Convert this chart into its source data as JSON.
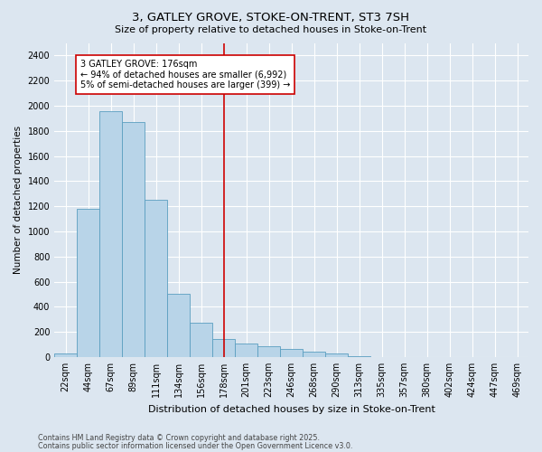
{
  "title1": "3, GATLEY GROVE, STOKE-ON-TRENT, ST3 7SH",
  "title2": "Size of property relative to detached houses in Stoke-on-Trent",
  "xlabel": "Distribution of detached houses by size in Stoke-on-Trent",
  "ylabel": "Number of detached properties",
  "categories": [
    "22sqm",
    "44sqm",
    "67sqm",
    "89sqm",
    "111sqm",
    "134sqm",
    "156sqm",
    "178sqm",
    "201sqm",
    "223sqm",
    "246sqm",
    "268sqm",
    "290sqm",
    "313sqm",
    "335sqm",
    "357sqm",
    "380sqm",
    "402sqm",
    "424sqm",
    "447sqm",
    "469sqm"
  ],
  "values": [
    30,
    1180,
    1960,
    1870,
    1250,
    500,
    270,
    140,
    105,
    85,
    65,
    40,
    25,
    5,
    2,
    1,
    1,
    0,
    0,
    0,
    0
  ],
  "bar_color": "#b8d4e8",
  "bar_edge_color": "#5a9ec0",
  "vline_x": 7,
  "vline_color": "#cc0000",
  "annotation_text": "3 GATLEY GROVE: 176sqm\n← 94% of detached houses are smaller (6,992)\n5% of semi-detached houses are larger (399) →",
  "annotation_box_color": "#ffffff",
  "annotation_box_edge": "#cc0000",
  "bg_color": "#dce6f0",
  "grid_color": "#ffffff",
  "ylim": [
    0,
    2500
  ],
  "yticks": [
    0,
    200,
    400,
    600,
    800,
    1000,
    1200,
    1400,
    1600,
    1800,
    2000,
    2200,
    2400
  ],
  "footer1": "Contains HM Land Registry data © Crown copyright and database right 2025.",
  "footer2": "Contains public sector information licensed under the Open Government Licence v3.0.",
  "title1_fontsize": 9.5,
  "title2_fontsize": 8,
  "ylabel_fontsize": 7.5,
  "xlabel_fontsize": 8,
  "tick_fontsize": 7,
  "annot_fontsize": 7,
  "footer_fontsize": 5.8
}
